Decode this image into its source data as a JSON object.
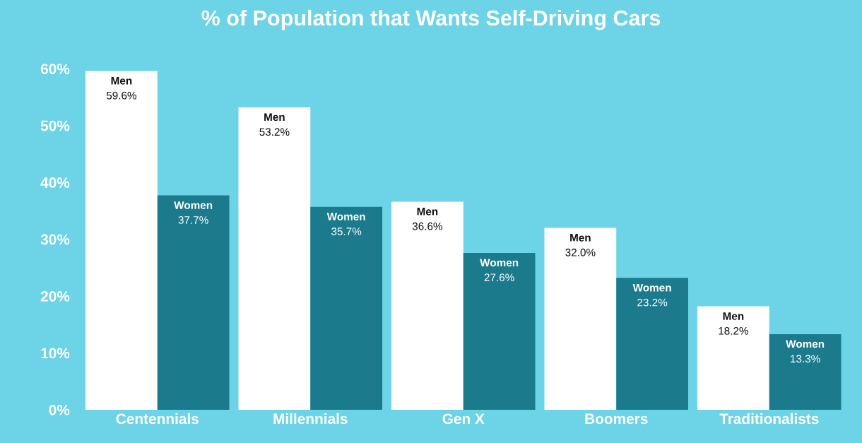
{
  "chart_data": {
    "type": "bar",
    "title": "% of Population that Wants Self-Driving Cars",
    "categories": [
      "Centennials",
      "Millennials",
      "Gen X",
      "Boomers",
      "Traditionalists"
    ],
    "series": [
      {
        "name": "Men",
        "color": "#ffffff",
        "values": [
          59.6,
          53.2,
          36.6,
          32.0,
          18.2
        ],
        "value_labels": [
          "59.6%",
          "53.2%",
          "36.6%",
          "32.0%",
          "18.2%"
        ]
      },
      {
        "name": "Women",
        "color": "#1b7b8d",
        "values": [
          37.7,
          35.7,
          27.6,
          23.2,
          13.3
        ],
        "value_labels": [
          "37.7%",
          "35.7%",
          "27.6%",
          "23.2%",
          "13.3%"
        ]
      }
    ],
    "ylim": [
      0,
      60
    ],
    "yticks": [
      {
        "value": 0,
        "label": "0%"
      },
      {
        "value": 10,
        "label": "10%"
      },
      {
        "value": 20,
        "label": "20%"
      },
      {
        "value": 30,
        "label": "30%"
      },
      {
        "value": 40,
        "label": "40%"
      },
      {
        "value": 50,
        "label": "50%"
      },
      {
        "value": 60,
        "label": "60%"
      }
    ],
    "grid": false,
    "legend": false
  }
}
